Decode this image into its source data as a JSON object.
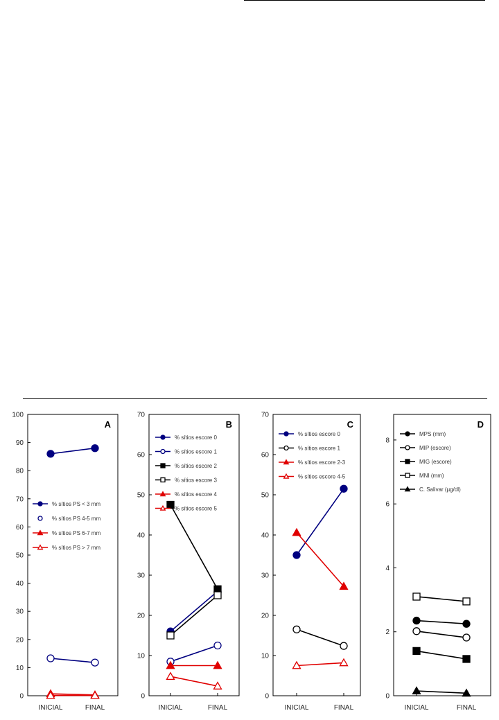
{
  "chart_data": [
    {
      "panel": "A",
      "type": "line",
      "categories": [
        "INICIAL",
        "FINAL"
      ],
      "ylim": [
        0,
        100
      ],
      "yticks": [
        0,
        10,
        20,
        30,
        40,
        50,
        60,
        70,
        80,
        90,
        100
      ],
      "legend_position": "middle-right",
      "series": [
        {
          "name": "% sítios PS < 3 mm",
          "values": [
            86,
            88
          ],
          "color": "#000080",
          "marker": "filled-circle"
        },
        {
          "name": "% sítios PS 4-5 mm",
          "values": [
            13.3,
            11.8
          ],
          "color": "#000080",
          "marker": "open-circle"
        },
        {
          "name": "% sítios PS 6-7 mm",
          "values": [
            0.7,
            0.3
          ],
          "color": "#e00000",
          "marker": "filled-triangle"
        },
        {
          "name": "% sítios PS > 7 mm",
          "values": [
            0.1,
            0.1
          ],
          "color": "#e00000",
          "marker": "open-triangle"
        }
      ]
    },
    {
      "panel": "B",
      "type": "line",
      "categories": [
        "INICIAL",
        "FINAL"
      ],
      "ylim": [
        0,
        70
      ],
      "yticks": [
        0,
        10,
        20,
        30,
        40,
        50,
        60,
        70
      ],
      "legend_position": "top-right",
      "series": [
        {
          "name": "% sítios escore 0",
          "values": [
            16,
            26
          ],
          "color": "#000080",
          "marker": "filled-circle"
        },
        {
          "name": "% sítios escore 1",
          "values": [
            8.5,
            12.5
          ],
          "color": "#000080",
          "marker": "open-circle"
        },
        {
          "name": "% sítios escore 2",
          "values": [
            47.5,
            26.5
          ],
          "color": "#000000",
          "marker": "filled-square"
        },
        {
          "name": "% sítios escore 3",
          "values": [
            15,
            25
          ],
          "color": "#000000",
          "marker": "open-square"
        },
        {
          "name": "% sítios escore 4",
          "values": [
            7.5,
            7.5
          ],
          "color": "#e00000",
          "marker": "filled-triangle"
        },
        {
          "name": "% sítios escore 5",
          "values": [
            4.8,
            2.4
          ],
          "color": "#e00000",
          "marker": "open-triangle"
        }
      ]
    },
    {
      "panel": "C",
      "type": "line",
      "categories": [
        "INICIAL",
        "FINAL"
      ],
      "ylim": [
        0,
        70
      ],
      "yticks": [
        0,
        10,
        20,
        30,
        40,
        50,
        60,
        70
      ],
      "legend_position": "top-right",
      "series": [
        {
          "name": "% sítios escore 0",
          "values": [
            35,
            51.5
          ],
          "color": "#000080",
          "marker": "filled-circle"
        },
        {
          "name": "% sítios escore 1",
          "values": [
            16.5,
            12.4
          ],
          "color": "#000000",
          "marker": "open-circle"
        },
        {
          "name": "% sítios escore 2-3",
          "values": [
            40.6,
            27.2
          ],
          "color": "#e00000",
          "marker": "filled-triangle"
        },
        {
          "name": "% sítios escore 4-5",
          "values": [
            7.5,
            8.2
          ],
          "color": "#e00000",
          "marker": "open-triangle"
        }
      ]
    },
    {
      "panel": "D",
      "type": "line",
      "categories": [
        "INICIAL",
        "FINAL"
      ],
      "ylim": [
        0,
        8.8
      ],
      "yticks": [
        0,
        2,
        4,
        6,
        8
      ],
      "legend_position": "top-right",
      "series": [
        {
          "name": "MPS (mm)",
          "values": [
            2.35,
            2.25
          ],
          "color": "#000000",
          "marker": "filled-circle"
        },
        {
          "name": "MIP (escore)",
          "values": [
            2.02,
            1.82
          ],
          "color": "#000000",
          "marker": "open-circle"
        },
        {
          "name": "MIG (escore)",
          "values": [
            1.4,
            1.15
          ],
          "color": "#000000",
          "marker": "filled-square"
        },
        {
          "name": "MNI (mm)",
          "values": [
            3.1,
            2.95
          ],
          "color": "#000000",
          "marker": "open-square"
        },
        {
          "name": "C. Salivar (µg/dl)",
          "values": [
            0.15,
            0.08
          ],
          "color": "#000000",
          "marker": "filled-triangle"
        }
      ]
    }
  ]
}
